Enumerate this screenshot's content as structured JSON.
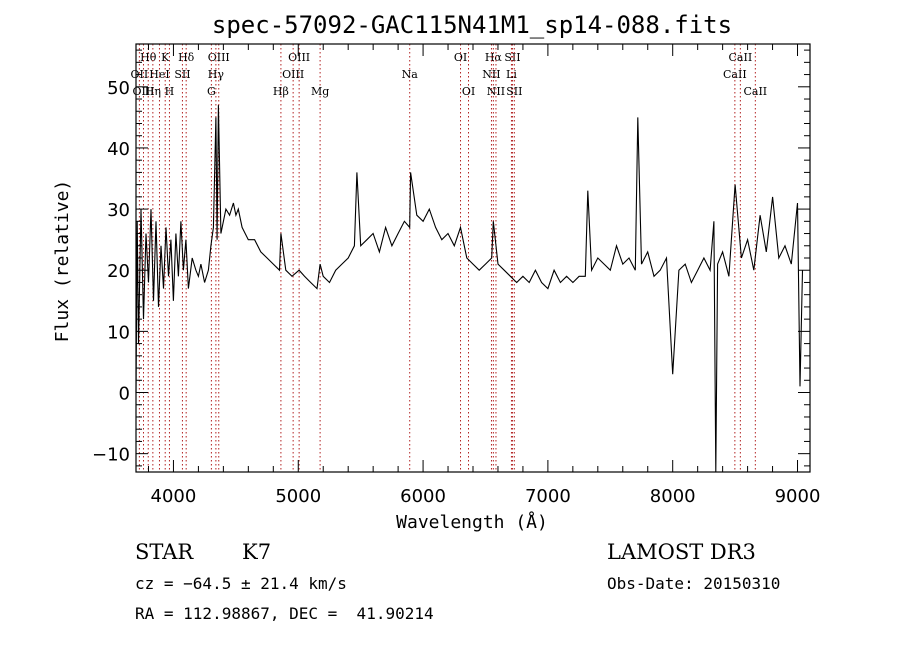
{
  "chart_data": {
    "type": "line",
    "title": "spec-57092-GAC115N41M1_sp14-088.fits",
    "xlabel": "Wavelength (Å)",
    "ylabel": "Flux (relative)",
    "xlim": [
      3700,
      9100
    ],
    "ylim": [
      -13,
      57
    ],
    "xticks": [
      {
        "v": 4000,
        "label": "4000"
      },
      {
        "v": 5000,
        "label": "5000"
      },
      {
        "v": 6000,
        "label": "6000"
      },
      {
        "v": 7000,
        "label": "7000"
      },
      {
        "v": 8000,
        "label": "8000"
      },
      {
        "v": 9000,
        "label": "9000"
      }
    ],
    "yticks": [
      {
        "v": -10,
        "label": "−10"
      },
      {
        "v": 0,
        "label": "0"
      },
      {
        "v": 10,
        "label": "10"
      },
      {
        "v": 20,
        "label": "20"
      },
      {
        "v": 30,
        "label": "30"
      },
      {
        "v": 40,
        "label": "40"
      },
      {
        "v": 50,
        "label": "50"
      }
    ],
    "spectrum": {
      "x": [
        3700,
        3710,
        3720,
        3740,
        3760,
        3780,
        3800,
        3820,
        3840,
        3860,
        3880,
        3900,
        3920,
        3940,
        3960,
        3980,
        4000,
        4020,
        4040,
        4060,
        4080,
        4100,
        4120,
        4150,
        4180,
        4200,
        4220,
        4250,
        4280,
        4300,
        4320,
        4340,
        4350,
        4360,
        4380,
        4400,
        4420,
        4450,
        4480,
        4500,
        4520,
        4550,
        4600,
        4650,
        4700,
        4750,
        4800,
        4850,
        4861,
        4900,
        4950,
        5007,
        5050,
        5100,
        5150,
        5175,
        5200,
        5250,
        5300,
        5350,
        5400,
        5450,
        5470,
        5500,
        5550,
        5600,
        5650,
        5700,
        5750,
        5800,
        5850,
        5893,
        5900,
        5950,
        6000,
        6050,
        6100,
        6150,
        6200,
        6250,
        6300,
        6350,
        6400,
        6450,
        6500,
        6550,
        6563,
        6600,
        6650,
        6700,
        6750,
        6800,
        6850,
        6900,
        6950,
        7000,
        7050,
        7100,
        7150,
        7200,
        7250,
        7300,
        7320,
        7350,
        7400,
        7450,
        7500,
        7550,
        7600,
        7650,
        7700,
        7720,
        7750,
        7800,
        7850,
        7900,
        7950,
        8000,
        8050,
        8100,
        8150,
        8200,
        8250,
        8300,
        8330,
        8345,
        8360,
        8400,
        8450,
        8500,
        8550,
        8600,
        8650,
        8700,
        8750,
        8800,
        8850,
        8900,
        8950,
        9000,
        9020,
        9040
      ],
      "y": [
        0,
        28,
        8,
        30,
        12,
        26,
        18,
        30,
        15,
        28,
        14,
        24,
        17,
        27,
        19,
        25,
        15,
        26,
        19,
        28,
        20,
        25,
        17,
        22,
        20,
        19,
        21,
        18,
        20,
        24,
        27,
        45,
        25,
        47,
        26,
        28,
        30,
        29,
        31,
        29,
        30,
        27,
        25,
        25,
        23,
        22,
        21,
        20,
        26,
        20,
        19,
        20,
        19,
        18,
        17,
        21,
        19,
        18,
        20,
        21,
        22,
        24,
        36,
        24,
        25,
        26,
        23,
        27,
        24,
        26,
        28,
        27,
        36,
        29,
        28,
        30,
        27,
        25,
        26,
        24,
        27,
        22,
        21,
        20,
        21,
        22,
        28,
        21,
        20,
        19,
        18,
        19,
        18,
        20,
        18,
        17,
        20,
        18,
        19,
        18,
        19,
        19,
        33,
        20,
        22,
        21,
        20,
        24,
        21,
        22,
        20,
        45,
        21,
        23,
        19,
        20,
        22,
        3,
        20,
        21,
        18,
        20,
        22,
        20,
        28,
        -13,
        21,
        23,
        19,
        34,
        22,
        25,
        20,
        29,
        23,
        32,
        22,
        24,
        21,
        31,
        1,
        20
      ]
    },
    "line_markers": [
      {
        "label": "Hθ",
        "x": 3798,
        "row": 1
      },
      {
        "label": "OII",
        "x": 3727,
        "row": 2
      },
      {
        "label": "OIII",
        "x": 3760,
        "row": 3
      },
      {
        "label": "HeI",
        "x": 3888,
        "row": 2
      },
      {
        "label": "Hη",
        "x": 3835,
        "row": 3
      },
      {
        "label": "K",
        "x": 3934,
        "row": 1
      },
      {
        "label": "H",
        "x": 3968,
        "row": 3
      },
      {
        "label": "Hδ",
        "x": 4102,
        "row": 1
      },
      {
        "label": "SII",
        "x": 4072,
        "row": 2
      },
      {
        "label": "OIII",
        "x": 4363,
        "row": 1
      },
      {
        "label": "Hγ",
        "x": 4340,
        "row": 2
      },
      {
        "label": "G",
        "x": 4304,
        "row": 3
      },
      {
        "label": "OIII",
        "x": 5007,
        "row": 1
      },
      {
        "label": "OIII",
        "x": 4959,
        "row": 2
      },
      {
        "label": "Hβ",
        "x": 4861,
        "row": 3
      },
      {
        "label": "Mg",
        "x": 5175,
        "row": 3
      },
      {
        "label": "Na",
        "x": 5893,
        "row": 2
      },
      {
        "label": "OI",
        "x": 6300,
        "row": 1
      },
      {
        "label": "OI",
        "x": 6364,
        "row": 3
      },
      {
        "label": "Hα",
        "x": 6563,
        "row": 1
      },
      {
        "label": "NII",
        "x": 6548,
        "row": 2
      },
      {
        "label": "NII",
        "x": 6584,
        "row": 3
      },
      {
        "label": "SII",
        "x": 6716,
        "row": 1
      },
      {
        "label": "Li",
        "x": 6708,
        "row": 2
      },
      {
        "label": "SII",
        "x": 6731,
        "row": 3
      },
      {
        "label": "CaII",
        "x": 8542,
        "row": 1
      },
      {
        "label": "CaII",
        "x": 8498,
        "row": 2
      },
      {
        "label": "CaII",
        "x": 8662,
        "row": 3
      }
    ]
  },
  "info": {
    "object_class": "STAR",
    "subclass": "K7",
    "survey": "LAMOST DR3",
    "cz": "cz = −64.5 ± 21.4 km/s",
    "obs_date": "Obs-Date: 20150310",
    "coords": "RA = 112.98867, DEC =  41.90214"
  }
}
